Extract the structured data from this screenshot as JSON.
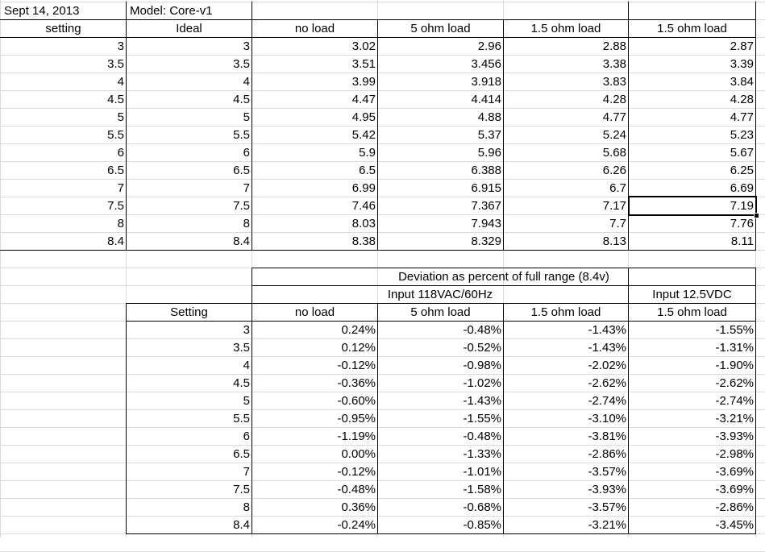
{
  "header": {
    "date": "Sept 14, 2013",
    "model": "Model: Core-v1",
    "col_setting": "setting",
    "col_ideal": "Ideal",
    "col_noload": "no load",
    "col_5ohm": "5 ohm load",
    "col_15ohm_a": "1.5 ohm load",
    "col_15ohm_b": "1.5 ohm load"
  },
  "measurements": [
    [
      "3",
      "3",
      "3.02",
      "2.96",
      "2.88",
      "2.87"
    ],
    [
      "3.5",
      "3.5",
      "3.51",
      "3.456",
      "3.38",
      "3.39"
    ],
    [
      "4",
      "4",
      "3.99",
      "3.918",
      "3.83",
      "3.84"
    ],
    [
      "4.5",
      "4.5",
      "4.47",
      "4.414",
      "4.28",
      "4.28"
    ],
    [
      "5",
      "5",
      "4.95",
      "4.88",
      "4.77",
      "4.77"
    ],
    [
      "5.5",
      "5.5",
      "5.42",
      "5.37",
      "5.24",
      "5.23"
    ],
    [
      "6",
      "6",
      "5.9",
      "5.96",
      "5.68",
      "5.67"
    ],
    [
      "6.5",
      "6.5",
      "6.5",
      "6.388",
      "6.26",
      "6.25"
    ],
    [
      "7",
      "7",
      "6.99",
      "6.915",
      "6.7",
      "6.69"
    ],
    [
      "7.5",
      "7.5",
      "7.46",
      "7.367",
      "7.17",
      "7.19"
    ],
    [
      "8",
      "8",
      "8.03",
      "7.943",
      "7.7",
      "7.76"
    ],
    [
      "8.4",
      "8.4",
      "8.38",
      "8.329",
      "8.13",
      "8.11"
    ]
  ],
  "deviation": {
    "title": "Deviation as percent of full range (8.4v)",
    "input_ac": "Input 118VAC/60Hz",
    "input_dc": "Input 12.5VDC",
    "col_setting": "Setting",
    "col_noload": "no load",
    "col_5ohm": "5 ohm load",
    "col_15ohm_a": "1.5 ohm load",
    "col_15ohm_b": "1.5 ohm load",
    "rows": [
      [
        "3",
        "0.24%",
        "-0.48%",
        "-1.43%",
        "-1.55%"
      ],
      [
        "3.5",
        "0.12%",
        "-0.52%",
        "-1.43%",
        "-1.31%"
      ],
      [
        "4",
        "-0.12%",
        "-0.98%",
        "-2.02%",
        "-1.90%"
      ],
      [
        "4.5",
        "-0.36%",
        "-1.02%",
        "-2.62%",
        "-2.62%"
      ],
      [
        "5",
        "-0.60%",
        "-1.43%",
        "-2.74%",
        "-2.74%"
      ],
      [
        "5.5",
        "-0.95%",
        "-1.55%",
        "-3.10%",
        "-3.21%"
      ],
      [
        "6",
        "-1.19%",
        "-0.48%",
        "-3.81%",
        "-3.93%"
      ],
      [
        "6.5",
        "0.00%",
        "-1.33%",
        "-2.86%",
        "-2.98%"
      ],
      [
        "7",
        "-0.12%",
        "-1.01%",
        "-3.57%",
        "-3.69%"
      ],
      [
        "7.5",
        "-0.48%",
        "-1.58%",
        "-3.93%",
        "-3.69%"
      ],
      [
        "8",
        "0.36%",
        "-0.68%",
        "-3.57%",
        "-2.86%"
      ],
      [
        "8.4",
        "-0.24%",
        "-0.85%",
        "-3.21%",
        "-3.45%"
      ]
    ]
  },
  "selection": {
    "row": 9,
    "col": 5
  }
}
